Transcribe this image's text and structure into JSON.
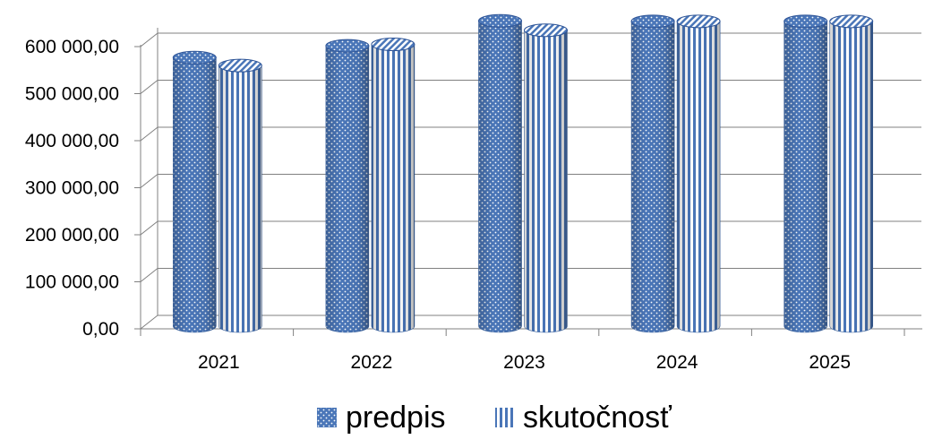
{
  "chart_data": {
    "type": "bar",
    "categories": [
      "2021",
      "2022",
      "2023",
      "2024",
      "2025"
    ],
    "series": [
      {
        "name": "predpis",
        "values": [
          570000,
          595000,
          648000,
          647000,
          647000
        ]
      },
      {
        "name": "skutočnosť",
        "values": [
          553000,
          598000,
          628000,
          647000,
          647000
        ]
      }
    ],
    "y_tick_labels": [
      "0,00",
      "100 000,00",
      "200 000,00",
      "300 000,00",
      "400 000,00",
      "500 000,00",
      "600 000,00"
    ],
    "ylim": [
      0,
      650000
    ],
    "grid": true,
    "legend_position": "bottom",
    "colors": {
      "bar": "#4a76b8",
      "bar_dark": "#2f5597",
      "pattern": "#ffffff",
      "grid": "#808080"
    }
  }
}
